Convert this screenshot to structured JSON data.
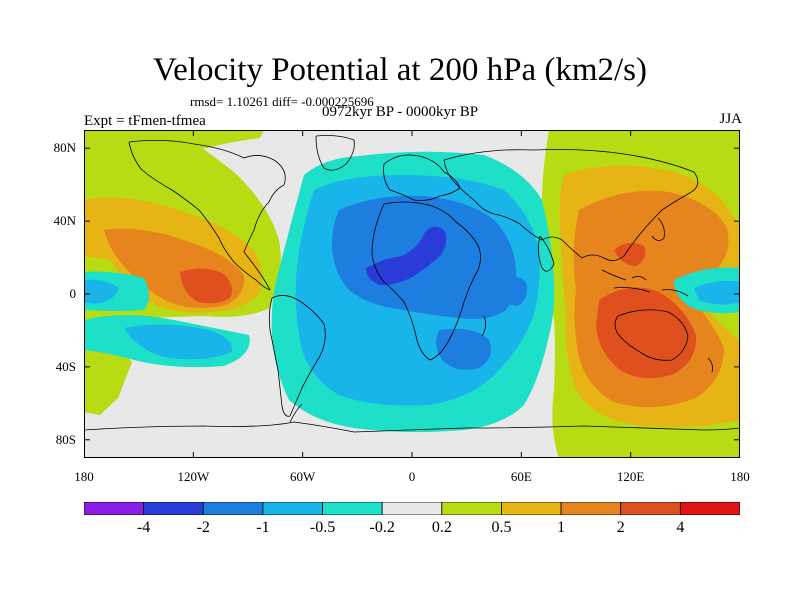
{
  "plot": {
    "title": "Velocity Potential at 200 hPa (km2/s)",
    "stats": "rmsd= 1.10261 diff= -0.000225696",
    "period": "0972kyr BP - 0000kyr BP",
    "experiment": "Expt = tFmen-tfmea",
    "season": "JJA"
  },
  "axes": {
    "lat_ticks": [
      {
        "label": "80N",
        "lat": 80
      },
      {
        "label": "40N",
        "lat": 40
      },
      {
        "label": "0",
        "lat": 0
      },
      {
        "label": "40S",
        "lat": -40
      },
      {
        "label": "80S",
        "lat": -80
      }
    ],
    "lon_ticks": [
      {
        "label": "180",
        "lon": -180
      },
      {
        "label": "120W",
        "lon": -120
      },
      {
        "label": "60W",
        "lon": -60
      },
      {
        "label": "0",
        "lon": 0
      },
      {
        "label": "60E",
        "lon": 60
      },
      {
        "label": "120E",
        "lon": 120
      },
      {
        "label": "180",
        "lon": 180
      }
    ],
    "lon_range": [
      -180,
      180
    ],
    "lat_range": [
      -90,
      90
    ]
  },
  "colorbar": {
    "levels": [
      "-4",
      "-2",
      "-1",
      "-0.5",
      "-0.2",
      "0.2",
      "0.5",
      "1",
      "2",
      "4"
    ],
    "colors": [
      "#8a1ee6",
      "#2a3cd8",
      "#1e7ee0",
      "#18b4ea",
      "#1ee0c8",
      "#e8e8e8",
      "#b8dc14",
      "#e6b414",
      "#e6841e",
      "#e0501e",
      "#e01414"
    ]
  },
  "field_colors": {
    "neutral": "#e8e8e8",
    "pos_weak": "#b8dc14",
    "pos_mid": "#e6b414",
    "pos_strong": "#e6841e",
    "pos_max": "#e0501e",
    "neg_weak": "#1ee0c8",
    "neg_mid": "#18b4ea",
    "neg_strong": "#1e7ee0",
    "neg_max": "#2a3cd8",
    "coast": "#000000"
  }
}
